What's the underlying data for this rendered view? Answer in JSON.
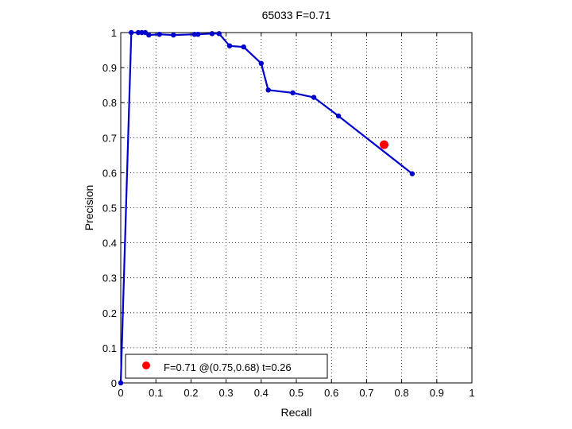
{
  "chart_data": {
    "type": "line",
    "title": "65033 F=0.71",
    "xlabel": "Recall",
    "ylabel": "Precision",
    "xlim": [
      0,
      1
    ],
    "ylim": [
      0,
      1
    ],
    "xticks": [
      "0",
      "0.1",
      "0.2",
      "0.3",
      "0.4",
      "0.5",
      "0.6",
      "0.7",
      "0.8",
      "0.9",
      "1"
    ],
    "yticks": [
      "0",
      "0.1",
      "0.2",
      "0.3",
      "0.4",
      "0.5",
      "0.6",
      "0.7",
      "0.8",
      "0.9",
      "1"
    ],
    "grid": true,
    "legend_position": "bottom-left",
    "series": [
      {
        "color": "#0000cc",
        "x": [
          0.0,
          0.03,
          0.05,
          0.06,
          0.07,
          0.08,
          0.11,
          0.15,
          0.21,
          0.22,
          0.26,
          0.28,
          0.31,
          0.35,
          0.4,
          0.42,
          0.49,
          0.55,
          0.62,
          0.83
        ],
        "y": [
          0.0,
          1.0,
          1.0,
          1.0,
          1.0,
          0.993,
          0.995,
          0.993,
          0.995,
          0.995,
          0.997,
          0.997,
          0.962,
          0.959,
          0.912,
          0.836,
          0.828,
          0.815,
          0.762,
          0.597
        ]
      }
    ],
    "best_point": {
      "x": 0.75,
      "y": 0.68,
      "color": "#ff0000"
    },
    "legend_text": "F=0.71 @(0.75,0.68) t=0.26"
  }
}
